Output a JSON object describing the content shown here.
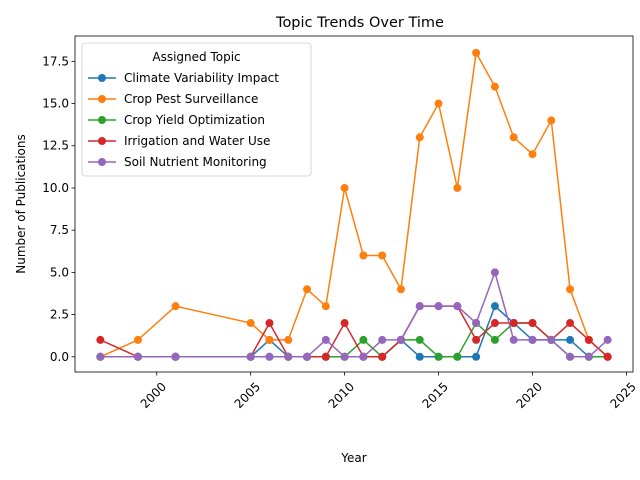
{
  "chart_data": {
    "type": "line",
    "title": "Topic Trends Over Time",
    "xlabel": "Year",
    "ylabel": "Number of Publications",
    "x": [
      1997,
      1999,
      2001,
      2005,
      2006,
      2007,
      2008,
      2009,
      2010,
      2011,
      2012,
      2013,
      2014,
      2015,
      2016,
      2017,
      2018,
      2019,
      2020,
      2021,
      2022,
      2023,
      2024
    ],
    "xlim": [
      1995.65,
      2025.35
    ],
    "ylim": [
      -0.9,
      19.0
    ],
    "xticks": [
      2000,
      2005,
      2010,
      2015,
      2020,
      2025
    ],
    "xtick_labels": [
      "2000",
      "2005",
      "2010",
      "2015",
      "2020",
      "2025"
    ],
    "yticks": [
      0.0,
      2.5,
      5.0,
      7.5,
      10.0,
      12.5,
      15.0,
      17.5
    ],
    "ytick_labels": [
      "0.0",
      "2.5",
      "5.0",
      "7.5",
      "10.0",
      "12.5",
      "15.0",
      "17.5"
    ],
    "legend_title": "Assigned Topic",
    "legend_position": "upper-left",
    "series": [
      {
        "name": "Climate Variability Impact",
        "color": "#1f77b4",
        "values": [
          0,
          0,
          0,
          0,
          1,
          0,
          0,
          0,
          0,
          0,
          0,
          1,
          0,
          0,
          0,
          0,
          3,
          2,
          1,
          1,
          1,
          0,
          0
        ]
      },
      {
        "name": "Crop Pest Surveillance",
        "color": "#ff7f0e",
        "values": [
          0,
          1,
          3,
          2,
          1,
          1,
          4,
          3,
          10,
          6,
          6,
          4,
          13,
          15,
          10,
          18,
          16,
          13,
          12,
          14,
          4,
          1,
          0
        ]
      },
      {
        "name": "Crop Yield Optimization",
        "color": "#2ca02c",
        "values": [
          0,
          0,
          0,
          0,
          0,
          0,
          0,
          0,
          0,
          1,
          0,
          1,
          1,
          0,
          0,
          2,
          1,
          2,
          2,
          1,
          0,
          0,
          0
        ]
      },
      {
        "name": "Irrigation and Water Use",
        "color": "#d62728",
        "values": [
          1,
          0,
          0,
          0,
          2,
          0,
          0,
          0,
          2,
          0,
          0,
          1,
          3,
          3,
          3,
          1,
          2,
          2,
          2,
          1,
          2,
          1,
          0
        ]
      },
      {
        "name": "Soil Nutrient Monitoring",
        "color": "#9467bd",
        "values": [
          0,
          0,
          0,
          0,
          0,
          0,
          0,
          1,
          0,
          0,
          1,
          1,
          3,
          3,
          3,
          2,
          5,
          1,
          1,
          1,
          0,
          0,
          1
        ]
      }
    ]
  }
}
